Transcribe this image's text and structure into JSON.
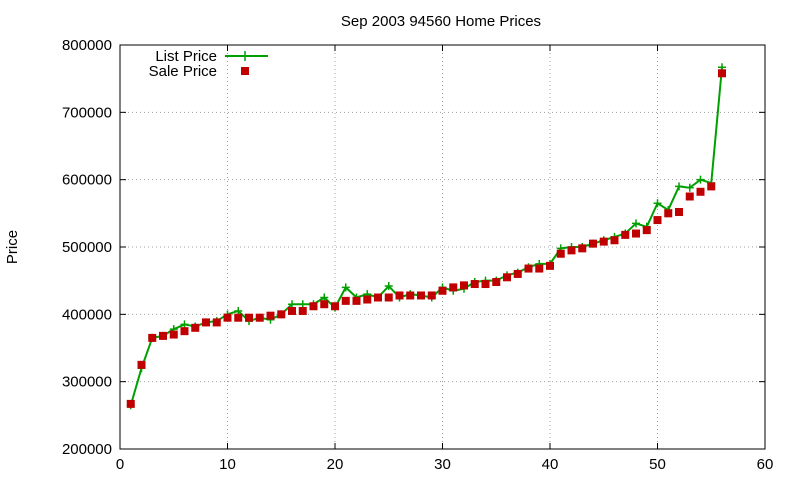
{
  "chart_data": {
    "type": "line",
    "title": "Sep 2003 94560 Home Prices",
    "xlabel": "",
    "ylabel": "Price",
    "xlim": [
      0,
      60
    ],
    "ylim": [
      200000,
      800000
    ],
    "xticks": [
      0,
      10,
      20,
      30,
      40,
      50,
      60
    ],
    "yticks": [
      200000,
      300000,
      400000,
      500000,
      600000,
      700000,
      800000
    ],
    "grid": true,
    "legend_position": "top-left",
    "x": [
      1,
      2,
      3,
      4,
      5,
      6,
      7,
      8,
      9,
      10,
      11,
      12,
      13,
      14,
      15,
      16,
      17,
      18,
      19,
      20,
      21,
      22,
      23,
      24,
      25,
      26,
      27,
      28,
      29,
      30,
      31,
      32,
      33,
      34,
      35,
      36,
      37,
      38,
      39,
      40,
      41,
      42,
      43,
      44,
      45,
      46,
      47,
      48,
      49,
      50,
      51,
      52,
      53,
      54,
      55,
      56
    ],
    "series": [
      {
        "name": "List Price",
        "color": "#00a000",
        "marker": "plus",
        "values": [
          265000,
          320000,
          365000,
          368000,
          378000,
          385000,
          382000,
          388000,
          390000,
          400000,
          405000,
          390000,
          395000,
          392000,
          400000,
          415000,
          415000,
          415000,
          425000,
          410000,
          440000,
          425000,
          430000,
          425000,
          442000,
          425000,
          430000,
          428000,
          425000,
          440000,
          435000,
          438000,
          448000,
          450000,
          450000,
          458000,
          462000,
          470000,
          475000,
          475000,
          498000,
          500000,
          500000,
          505000,
          510000,
          515000,
          520000,
          535000,
          530000,
          565000,
          555000,
          590000,
          588000,
          600000,
          595000,
          767000
        ]
      },
      {
        "name": "Sale Price",
        "color": "#c00000",
        "marker": "square",
        "values": [
          267000,
          325000,
          365000,
          368000,
          370000,
          375000,
          380000,
          388000,
          388000,
          395000,
          395000,
          395000,
          395000,
          398000,
          400000,
          405000,
          405000,
          412000,
          415000,
          412000,
          420000,
          420000,
          422000,
          425000,
          425000,
          428000,
          428000,
          428000,
          428000,
          435000,
          440000,
          443000,
          445000,
          445000,
          448000,
          455000,
          460000,
          468000,
          468000,
          472000,
          490000,
          495000,
          498000,
          505000,
          508000,
          510000,
          518000,
          520000,
          525000,
          540000,
          550000,
          552000,
          575000,
          582000,
          590000,
          758000
        ]
      }
    ]
  },
  "colors": {
    "list": "#00a000",
    "sale": "#c00000",
    "axis": "#000000",
    "grid": "#a0a0a0"
  }
}
